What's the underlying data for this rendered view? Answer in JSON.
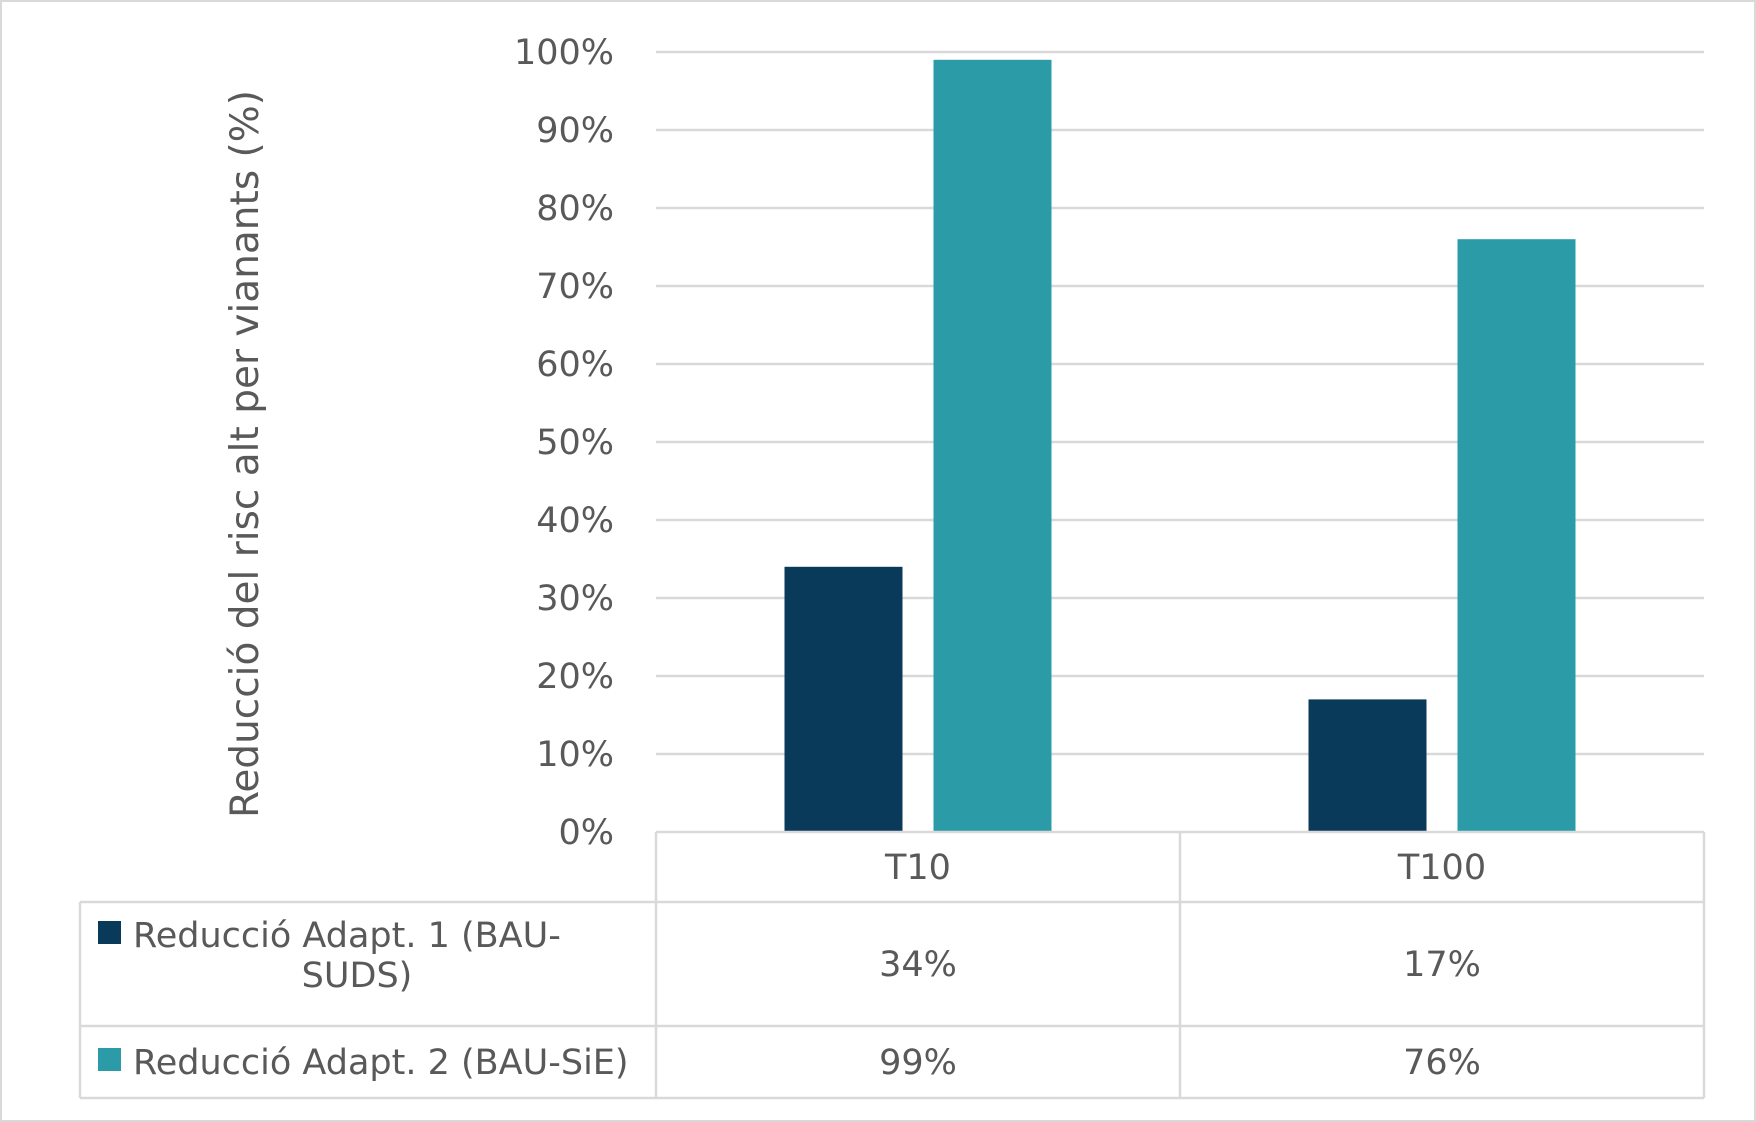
{
  "chart_data": {
    "type": "bar",
    "title": "",
    "xlabel": "",
    "ylabel": "Reducció del risc alt per vianants (%)",
    "categories": [
      "T10",
      "T100"
    ],
    "series": [
      {
        "name": "Reducció Adapt. 1 (BAU-SUDS)",
        "legend_lines": [
          "Reducció Adapt. 1 (BAU-",
          "SUDS)"
        ],
        "values": [
          34,
          17
        ],
        "labels": [
          "34%",
          "17%"
        ],
        "color": "#0a3a5a"
      },
      {
        "name": "Reducció Adapt. 2 (BAU-SiE)",
        "legend_lines": [
          "Reducció Adapt. 2 (BAU-SiE)"
        ],
        "values": [
          99,
          76
        ],
        "labels": [
          "99%",
          "76%"
        ],
        "color": "#2b9ba8"
      }
    ],
    "ylim": [
      0,
      100
    ],
    "yticks": [
      "0%",
      "10%",
      "20%",
      "30%",
      "40%",
      "50%",
      "60%",
      "70%",
      "80%",
      "90%",
      "100%"
    ],
    "grid": true,
    "legend": "data table below the plot",
    "colors": {
      "gridline": "#d9d9d9",
      "text": "#595959",
      "border": "#d9d9d9"
    }
  }
}
